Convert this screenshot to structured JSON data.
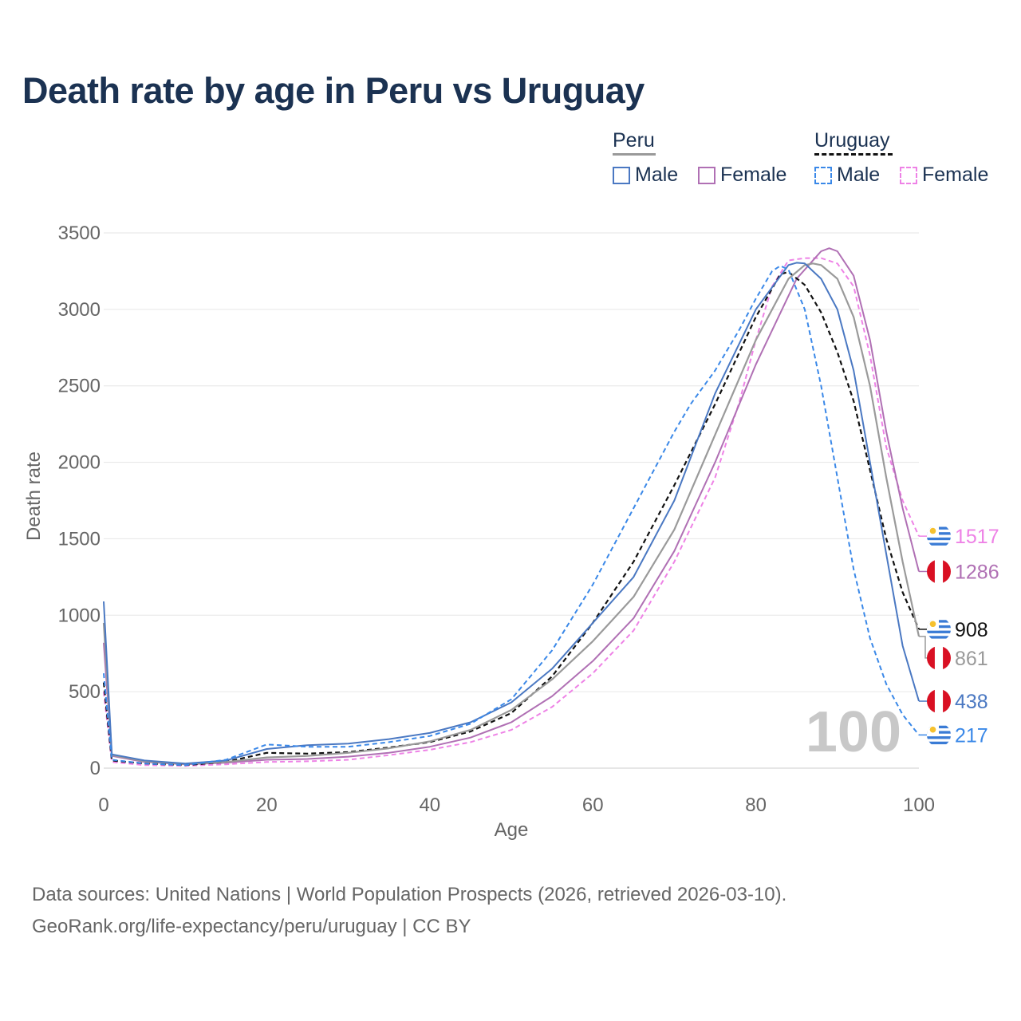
{
  "title": "Death rate by age in Peru vs Uruguay",
  "legend": {
    "peru_label": "Peru",
    "uruguay_label": "Uruguay",
    "male_label": "Male",
    "female_label": "Female"
  },
  "colors": {
    "peru_male": "#4a78c2",
    "peru_female": "#b070b4",
    "peru_total": "#9a9a9a",
    "uruguay_male": "#3a88e8",
    "uruguay_female": "#ee82e6",
    "uruguay_total": "#111111"
  },
  "source": {
    "line1": "Data sources: United Nations | World Population Prospects (2026, retrieved 2026-03-10).",
    "line2": "GeoRank.org/life-expectancy/peru/uruguay | CC BY"
  },
  "chart_data": {
    "type": "line",
    "xlabel": "Age",
    "ylabel": "Death rate",
    "xlim": [
      0,
      100
    ],
    "ylim": [
      0,
      3500
    ],
    "xticks": [
      0,
      20,
      40,
      60,
      80,
      100
    ],
    "yticks": [
      0,
      500,
      1000,
      1500,
      2000,
      2500,
      3000,
      3500
    ],
    "watermark": "100",
    "series": [
      {
        "key": "uruguay_female",
        "name": "Uruguay Female",
        "dashed": true,
        "x": [
          0,
          1,
          5,
          10,
          15,
          20,
          25,
          30,
          35,
          40,
          45,
          50,
          55,
          60,
          65,
          70,
          75,
          78,
          80,
          82,
          84,
          86,
          88,
          90,
          92,
          94,
          96,
          98,
          100
        ],
        "y": [
          500,
          40,
          20,
          15,
          25,
          40,
          45,
          55,
          85,
          120,
          170,
          250,
          400,
          620,
          900,
          1350,
          1900,
          2400,
          2800,
          3150,
          3320,
          3335,
          3335,
          3300,
          3150,
          2700,
          2100,
          1750,
          1517
        ],
        "end_label": "1517",
        "flag": "uruguay"
      },
      {
        "key": "peru_female",
        "name": "Peru Female",
        "dashed": false,
        "x": [
          0,
          1,
          5,
          10,
          15,
          20,
          25,
          30,
          35,
          40,
          45,
          50,
          55,
          60,
          65,
          70,
          75,
          80,
          85,
          88,
          89,
          90,
          92,
          94,
          96,
          98,
          100
        ],
        "y": [
          820,
          80,
          40,
          25,
          35,
          55,
          60,
          75,
          100,
          140,
          200,
          300,
          470,
          700,
          980,
          1420,
          2000,
          2640,
          3200,
          3380,
          3400,
          3380,
          3220,
          2800,
          2200,
          1700,
          1286
        ],
        "end_label": "1286",
        "flag": "peru"
      },
      {
        "key": "uruguay_total",
        "name": "Uruguay",
        "dashed": true,
        "x": [
          0,
          1,
          5,
          10,
          15,
          20,
          25,
          30,
          35,
          40,
          45,
          50,
          55,
          60,
          65,
          70,
          75,
          80,
          83,
          84,
          86,
          88,
          90,
          92,
          94,
          96,
          98,
          100
        ],
        "y": [
          560,
          50,
          30,
          20,
          40,
          100,
          95,
          105,
          135,
          170,
          240,
          360,
          600,
          950,
          1350,
          1850,
          2380,
          2950,
          3230,
          3245,
          3160,
          2980,
          2720,
          2400,
          1950,
          1500,
          1150,
          908
        ],
        "end_label": "908",
        "flag": "uruguay"
      },
      {
        "key": "peru_total",
        "name": "Peru",
        "dashed": false,
        "x": [
          0,
          1,
          5,
          10,
          15,
          20,
          25,
          30,
          35,
          40,
          45,
          50,
          55,
          60,
          65,
          70,
          75,
          80,
          84,
          86,
          87,
          88,
          90,
          92,
          94,
          96,
          98,
          100
        ],
        "y": [
          950,
          85,
          45,
          28,
          40,
          70,
          80,
          100,
          130,
          175,
          250,
          380,
          580,
          830,
          1120,
          1560,
          2180,
          2800,
          3200,
          3290,
          3300,
          3290,
          3200,
          2950,
          2500,
          1900,
          1350,
          861
        ],
        "end_label": "861",
        "flag": "peru"
      },
      {
        "key": "peru_male",
        "name": "Peru Male",
        "dashed": false,
        "x": [
          0,
          1,
          5,
          10,
          15,
          20,
          25,
          30,
          35,
          40,
          45,
          50,
          55,
          60,
          65,
          70,
          75,
          80,
          84,
          85,
          86,
          88,
          90,
          92,
          94,
          96,
          98,
          100
        ],
        "y": [
          1090,
          90,
          50,
          30,
          50,
          125,
          150,
          160,
          190,
          230,
          300,
          430,
          650,
          950,
          1250,
          1750,
          2450,
          3000,
          3290,
          3305,
          3300,
          3200,
          3000,
          2600,
          2000,
          1400,
          800,
          438
        ],
        "end_label": "438",
        "flag": "peru"
      },
      {
        "key": "uruguay_male",
        "name": "Uruguay Male",
        "dashed": true,
        "x": [
          0,
          1,
          5,
          10,
          15,
          20,
          25,
          30,
          35,
          40,
          45,
          50,
          55,
          60,
          65,
          70,
          72,
          75,
          78,
          80,
          82,
          83,
          84,
          86,
          88,
          90,
          92,
          94,
          96,
          98,
          100
        ],
        "y": [
          620,
          55,
          30,
          20,
          55,
          155,
          140,
          140,
          170,
          210,
          290,
          450,
          770,
          1200,
          1700,
          2200,
          2380,
          2600,
          2870,
          3070,
          3250,
          3285,
          3260,
          3000,
          2500,
          1900,
          1300,
          850,
          550,
          350,
          217
        ],
        "end_label": "217",
        "flag": "uruguay"
      }
    ]
  }
}
